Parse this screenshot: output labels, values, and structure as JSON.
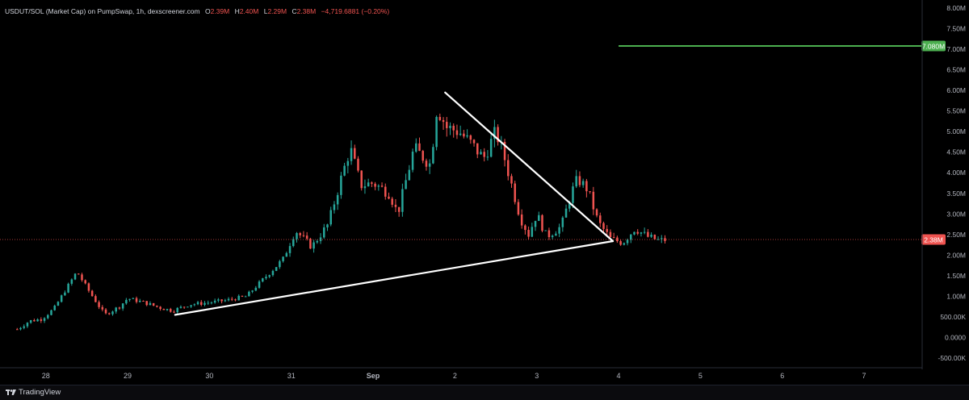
{
  "header": {
    "symbol": "USDUT/SOL (Market Cap) on PumpSwap, 1h, dexscreener.com",
    "open_label": "O",
    "open": "2.39M",
    "high_label": "H",
    "high": "2.40M",
    "low_label": "L",
    "low": "2.29M",
    "close_label": "C",
    "close": "2.38M",
    "change": "−4,719.6881 (−0.20%)"
  },
  "footer": {
    "brand": "TradingView"
  },
  "colors": {
    "background": "#000000",
    "up": "#26a69a",
    "down": "#ef5350",
    "trendline": "#ffffff",
    "target": "#4caf50"
  },
  "chart_data": {
    "type": "candlestick",
    "interval": "1h",
    "y_axis": {
      "min": -500000,
      "max": 8000000,
      "ticks": [
        -500000,
        0,
        500000,
        1000000,
        1500000,
        2000000,
        2500000,
        3000000,
        3500000,
        4000000,
        4500000,
        5000000,
        5500000,
        6000000,
        6500000,
        7000000,
        7500000,
        8000000
      ],
      "tick_labels": [
        "-500.00K",
        "0.0000",
        "500.00K",
        "1.00M",
        "1.50M",
        "2.00M",
        "2.50M",
        "3.00M",
        "3.50M",
        "4.00M",
        "4.50M",
        "5.00M",
        "5.50M",
        "6.00M",
        "6.50M",
        "7.00M",
        "7.50M",
        "8.00M"
      ]
    },
    "x_axis": {
      "unit": "day",
      "ticks": [
        28,
        29,
        30,
        31,
        32,
        33,
        34,
        35,
        36,
        37,
        38
      ],
      "tick_labels": [
        "28",
        "29",
        "30",
        "31",
        "Sep",
        "2",
        "3",
        "4",
        "5",
        "6",
        "7"
      ],
      "range": [
        27.45,
        38.7
      ]
    },
    "price_guides": [
      {
        "value": 2380000,
        "label": "2.38M",
        "style": "dotted",
        "color": "#ef5350"
      },
      {
        "value": 7080000,
        "label": "7.080M",
        "style": "solid",
        "color": "#4caf50",
        "x_start": 35.0
      }
    ],
    "trendlines": [
      {
        "name": "support",
        "points": [
          [
            29.58,
            550000
          ],
          [
            34.93,
            2340000
          ]
        ]
      },
      {
        "name": "resistance",
        "points": [
          [
            32.88,
            5950000
          ],
          [
            34.93,
            2340000
          ]
        ]
      }
    ],
    "anchors": [
      [
        27.65,
        200000
      ],
      [
        27.8,
        400000
      ],
      [
        27.95,
        450000
      ],
      [
        28.1,
        700000
      ],
      [
        28.27,
        1250000
      ],
      [
        28.38,
        1600000
      ],
      [
        28.52,
        1150000
      ],
      [
        28.72,
        550000
      ],
      [
        28.9,
        750000
      ],
      [
        29.0,
        950000
      ],
      [
        29.2,
        850000
      ],
      [
        29.4,
        720000
      ],
      [
        29.55,
        650000
      ],
      [
        29.75,
        800000
      ],
      [
        30.0,
        850000
      ],
      [
        30.2,
        900000
      ],
      [
        30.45,
        1000000
      ],
      [
        30.65,
        1400000
      ],
      [
        30.9,
        1900000
      ],
      [
        31.05,
        2600000
      ],
      [
        31.25,
        2200000
      ],
      [
        31.45,
        2750000
      ],
      [
        31.6,
        3800000
      ],
      [
        31.72,
        4600000
      ],
      [
        31.85,
        3700000
      ],
      [
        32.0,
        3750000
      ],
      [
        32.2,
        3500000
      ],
      [
        32.3,
        3000000
      ],
      [
        32.5,
        4600000
      ],
      [
        32.7,
        4200000
      ],
      [
        32.78,
        5600000
      ],
      [
        32.9,
        5100000
      ],
      [
        33.05,
        5000000
      ],
      [
        33.2,
        4700000
      ],
      [
        33.35,
        4350000
      ],
      [
        33.5,
        5000000
      ],
      [
        33.6,
        4400000
      ],
      [
        33.72,
        3500000
      ],
      [
        33.8,
        2900000
      ],
      [
        33.9,
        2500000
      ],
      [
        34.0,
        3000000
      ],
      [
        34.12,
        2450000
      ],
      [
        34.3,
        2700000
      ],
      [
        34.42,
        3500000
      ],
      [
        34.5,
        3850000
      ],
      [
        34.62,
        3600000
      ],
      [
        34.75,
        2800000
      ],
      [
        34.9,
        2400000
      ],
      [
        35.05,
        2300000
      ],
      [
        35.2,
        2650000
      ],
      [
        35.35,
        2450000
      ],
      [
        35.5,
        2350000
      ],
      [
        35.6,
        2380000
      ]
    ]
  }
}
